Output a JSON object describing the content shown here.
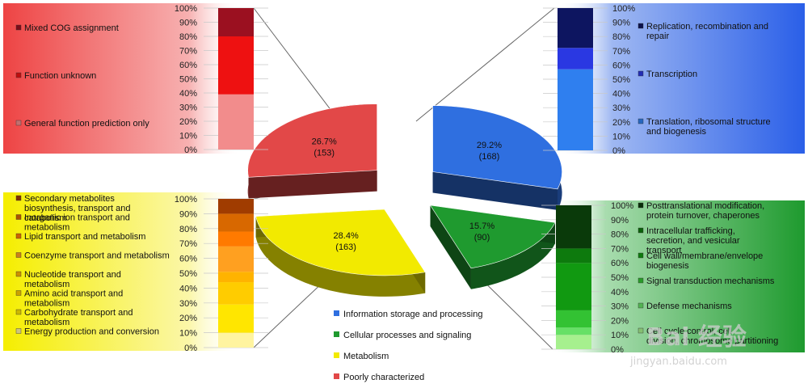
{
  "chart_data": [
    {
      "type": "pie",
      "title": "",
      "slices": [
        {
          "label": "Information storage and processing",
          "percent": 29.2,
          "count": 168,
          "percent_text": "29.2%",
          "count_text": "(168)",
          "color": "#2f6fe0"
        },
        {
          "label": "Cellular processes and signaling",
          "percent": 15.7,
          "count": 90,
          "percent_text": "15.7%",
          "count_text": "(90)",
          "color": "#1f9a2f"
        },
        {
          "label": "Metabolism",
          "percent": 28.4,
          "count": 163,
          "percent_text": "28.4%",
          "count_text": "(163)",
          "color": "#f2ea00"
        },
        {
          "label": "Poorly characterized",
          "percent": 26.7,
          "count": 153,
          "percent_text": "26.7%",
          "count_text": "(153)",
          "color": "#e24848"
        }
      ],
      "legend": [
        {
          "label": "Information storage and processing",
          "color": "#2f6fe0"
        },
        {
          "label": "Cellular processes and signaling",
          "color": "#1f9a2f"
        },
        {
          "label": "Metabolism",
          "color": "#f2ea00"
        },
        {
          "label": "Poorly characterized",
          "color": "#e24848"
        }
      ]
    },
    {
      "type": "bar",
      "stacked": true,
      "group": "Poorly characterized",
      "ylim": [
        0,
        100
      ],
      "yticks": [
        "0%",
        "10%",
        "20%",
        "30%",
        "40%",
        "50%",
        "60%",
        "70%",
        "80%",
        "90%",
        "100%"
      ],
      "series": [
        {
          "name": "General function prediction only",
          "value": 39,
          "color": "#f28c8c"
        },
        {
          "name": "Function unknown",
          "value": 41,
          "color": "#ee1111"
        },
        {
          "name": "Mixed COG assignment",
          "value": 20,
          "color": "#9b1020"
        }
      ]
    },
    {
      "type": "bar",
      "stacked": true,
      "group": "Information storage and processing",
      "ylim": [
        0,
        100
      ],
      "yticks": [
        "0%",
        "10%",
        "20%",
        "30%",
        "40%",
        "50%",
        "60%",
        "70%",
        "80%",
        "90%",
        "100%"
      ],
      "series": [
        {
          "name": "Translation, ribosomal structure and biogenesis",
          "value": 57,
          "color": "#2f7fef"
        },
        {
          "name": "Transcription",
          "value": 15,
          "color": "#2a38e2"
        },
        {
          "name": "Replication, recombination and repair",
          "value": 28,
          "color": "#0d1560"
        }
      ]
    },
    {
      "type": "bar",
      "stacked": true,
      "group": "Metabolism",
      "ylim": [
        0,
        100
      ],
      "yticks": [
        "0%",
        "10%",
        "20%",
        "30%",
        "40%",
        "50%",
        "60%",
        "70%",
        "80%",
        "90%",
        "100%"
      ],
      "series": [
        {
          "name": "Energy production and conversion",
          "value": 10,
          "color": "#fff4a0"
        },
        {
          "name": "Carbohydrate transport and metabolism",
          "value": 19,
          "color": "#ffe600"
        },
        {
          "name": "Amino acid transport and metabolism",
          "value": 15,
          "color": "#ffcc00"
        },
        {
          "name": "Nucleotide transport and metabolism",
          "value": 7,
          "color": "#ffb300"
        },
        {
          "name": "Coenzyme transport and metabolism",
          "value": 17,
          "color": "#ffa020"
        },
        {
          "name": "Lipid transport and metabolism",
          "value": 10,
          "color": "#ff7a00"
        },
        {
          "name": "Inorganic ion transport and metabolism",
          "value": 12,
          "color": "#d86800"
        },
        {
          "name": "Secondary metabolites biosynthesis, transport and catabolism",
          "value": 10,
          "color": "#a03c00"
        }
      ]
    },
    {
      "type": "bar",
      "stacked": true,
      "group": "Cellular processes and signaling",
      "ylim": [
        0,
        100
      ],
      "yticks": [
        "0%",
        "10%",
        "20%",
        "30%",
        "40%",
        "50%",
        "60%",
        "70%",
        "80%",
        "90%",
        "100%"
      ],
      "series": [
        {
          "name": "Cell cycle control, cell division, chromosome partitioning",
          "value": 10,
          "color": "#a6f08e"
        },
        {
          "name": "Defense mechanisms",
          "value": 5,
          "color": "#66e066"
        },
        {
          "name": "Signal transduction mechanisms",
          "value": 12,
          "color": "#33c233"
        },
        {
          "name": "Cell wall/membrane/envelope biogenesis",
          "value": 33,
          "color": "#119911"
        },
        {
          "name": "Intracellular trafficking, secretion, and vesicular transport",
          "value": 10,
          "color": "#0d7a0d"
        },
        {
          "name": "Posttranslational modification, protein turnover, chaperones",
          "value": 30,
          "color": "#0a3a0a"
        }
      ]
    }
  ],
  "watermark": {
    "text": "Bai 经验",
    "url_text": "jingyan.baidu.com"
  }
}
